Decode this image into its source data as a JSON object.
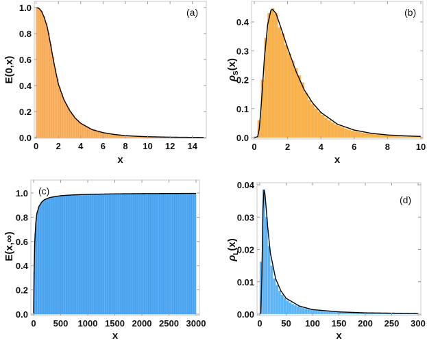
{
  "chart_data": [
    {
      "panel": "(a)",
      "type": "bar+line",
      "xlabel": "x",
      "ylabel": "E(0,x)",
      "xlim": [
        0,
        15
      ],
      "ylim": [
        0,
        1.0
      ],
      "xticks": [
        0,
        2,
        4,
        6,
        8,
        10,
        12,
        14
      ],
      "yticks": [
        "0.0",
        "0.2",
        "0.4",
        "0.6",
        "0.8",
        "1.0"
      ],
      "bar_color": "#F9B465",
      "bar_edge": "#EE9A45",
      "bin_width": 0.2,
      "curve": [
        [
          0,
          1.0
        ],
        [
          0.25,
          0.995
        ],
        [
          0.5,
          0.97
        ],
        [
          0.75,
          0.92
        ],
        [
          1,
          0.85
        ],
        [
          1.25,
          0.74
        ],
        [
          1.5,
          0.62
        ],
        [
          1.75,
          0.51
        ],
        [
          2,
          0.41
        ],
        [
          2.5,
          0.29
        ],
        [
          3,
          0.21
        ],
        [
          3.5,
          0.15
        ],
        [
          4,
          0.11
        ],
        [
          5,
          0.062
        ],
        [
          6,
          0.038
        ],
        [
          7,
          0.024
        ],
        [
          8,
          0.015
        ],
        [
          9,
          0.01
        ],
        [
          10,
          0.0065
        ],
        [
          12,
          0.003
        ],
        [
          15,
          0.001
        ]
      ]
    },
    {
      "panel": "(b)",
      "type": "bar+line",
      "xlabel": "x",
      "ylabel": "ρS(x)",
      "ylabel_main": "ρ",
      "ylabel_sub": "S",
      "ylabel_tail": "(x)",
      "xlim": [
        0,
        10
      ],
      "ylim": [
        0,
        0.4
      ],
      "xticks": [
        0,
        2,
        4,
        6,
        8,
        10
      ],
      "yticks": [
        "0.0",
        "0.1",
        "0.2",
        "0.3",
        "0.4"
      ],
      "bar_color": "#F9B149",
      "bar_edge": "#F0C080",
      "bin_width": 0.2,
      "bars": [
        0.0,
        0.06,
        0.2,
        0.345,
        0.43,
        0.447,
        0.43,
        0.38,
        0.36,
        0.32,
        0.29,
        0.265,
        0.24,
        0.215,
        0.19,
        0.155,
        0.13,
        0.115,
        0.1,
        0.088,
        0.078,
        0.068,
        0.06,
        0.052,
        0.045,
        0.04,
        0.035,
        0.031,
        0.027,
        0.024,
        0.021,
        0.019,
        0.017,
        0.015,
        0.013,
        0.012,
        0.011,
        0.01,
        0.009,
        0.008,
        0.0075,
        0.007,
        0.0065,
        0.006,
        0.0055,
        0.005,
        0.0048,
        0.0045,
        0.0042,
        0.004
      ],
      "curve": [
        [
          0,
          0
        ],
        [
          0.2,
          0.003
        ],
        [
          0.3,
          0.03
        ],
        [
          0.4,
          0.1
        ],
        [
          0.5,
          0.18
        ],
        [
          0.6,
          0.27
        ],
        [
          0.8,
          0.39
        ],
        [
          1.0,
          0.44
        ],
        [
          1.1,
          0.443
        ],
        [
          1.3,
          0.43
        ],
        [
          1.6,
          0.38
        ],
        [
          2,
          0.31
        ],
        [
          2.5,
          0.23
        ],
        [
          3,
          0.165
        ],
        [
          3.5,
          0.12
        ],
        [
          4,
          0.087
        ],
        [
          5,
          0.046
        ],
        [
          6,
          0.026
        ],
        [
          7,
          0.015
        ],
        [
          8,
          0.009
        ],
        [
          9,
          0.006
        ],
        [
          10,
          0.004
        ]
      ]
    },
    {
      "panel": "(c)",
      "type": "bar+line",
      "xlabel": "x",
      "ylabel": "E(x,∞)",
      "xlim": [
        0,
        3000
      ],
      "ylim": [
        0,
        1.0
      ],
      "xticks": [
        0,
        500,
        1000,
        1500,
        2000,
        2500,
        3000
      ],
      "yticks": [
        "0.0",
        "0.2",
        "0.4",
        "0.6",
        "0.8",
        "1.0"
      ],
      "bar_color": "#5DB2F7",
      "bar_edge": "#3C95E6",
      "bin_width": 20,
      "curve": [
        [
          0,
          0
        ],
        [
          10,
          0.35
        ],
        [
          20,
          0.58
        ],
        [
          40,
          0.75
        ],
        [
          60,
          0.83
        ],
        [
          100,
          0.89
        ],
        [
          150,
          0.925
        ],
        [
          200,
          0.945
        ],
        [
          300,
          0.963
        ],
        [
          500,
          0.978
        ],
        [
          750,
          0.985
        ],
        [
          1000,
          0.989
        ],
        [
          1500,
          0.993
        ],
        [
          2000,
          0.995
        ],
        [
          3000,
          0.997
        ]
      ]
    },
    {
      "panel": "(d)",
      "type": "bar+line",
      "xlabel": "x",
      "ylabel": "ρL(x)",
      "ylabel_main": "ρ",
      "ylabel_sub": "L",
      "ylabel_tail": "(x)",
      "xlim": [
        0,
        300
      ],
      "ylim": [
        0,
        0.04
      ],
      "xticks": [
        0,
        50,
        100,
        150,
        200,
        250,
        300
      ],
      "yticks": [
        "0.00",
        "0.01",
        "0.02",
        "0.03",
        "0.04"
      ],
      "bar_color": "#5AB4F5",
      "bar_edge": "#9CCFF5",
      "bin_width": 5,
      "bars": [
        0.0162,
        0.0385,
        0.03,
        0.021,
        0.015,
        0.011,
        0.009,
        0.0072,
        0.006,
        0.005,
        0.0042,
        0.0036,
        0.0031,
        0.0027,
        0.0024,
        0.0021,
        0.0019,
        0.0017,
        0.0015,
        0.0014,
        0.0012,
        0.0011,
        0.001,
        0.0009,
        0.00085,
        0.0008,
        0.00075,
        0.0007,
        0.00065,
        0.0006,
        0.00056,
        0.00052,
        0.00049,
        0.00046,
        0.00043,
        0.0004,
        0.00038,
        0.00036,
        0.00034,
        0.00032,
        0.0003,
        0.00029,
        0.00028,
        0.00027,
        0.00026,
        0.00025,
        0.00024,
        0.00023,
        0.00022,
        0.00021,
        0.0002,
        0.00019,
        0.00018,
        0.00017,
        0.00016,
        0.00015,
        0.00014,
        0.00013,
        0.00012,
        0.00011
      ],
      "curve": [
        [
          0,
          0
        ],
        [
          2,
          0.0005
        ],
        [
          4,
          0.012
        ],
        [
          6,
          0.032
        ],
        [
          8,
          0.0385
        ],
        [
          10,
          0.037
        ],
        [
          15,
          0.027
        ],
        [
          20,
          0.019
        ],
        [
          30,
          0.011
        ],
        [
          40,
          0.0072
        ],
        [
          50,
          0.0049
        ],
        [
          75,
          0.0025
        ],
        [
          100,
          0.0014
        ],
        [
          150,
          0.0007
        ],
        [
          200,
          0.0004
        ],
        [
          300,
          0.0002
        ]
      ]
    }
  ]
}
